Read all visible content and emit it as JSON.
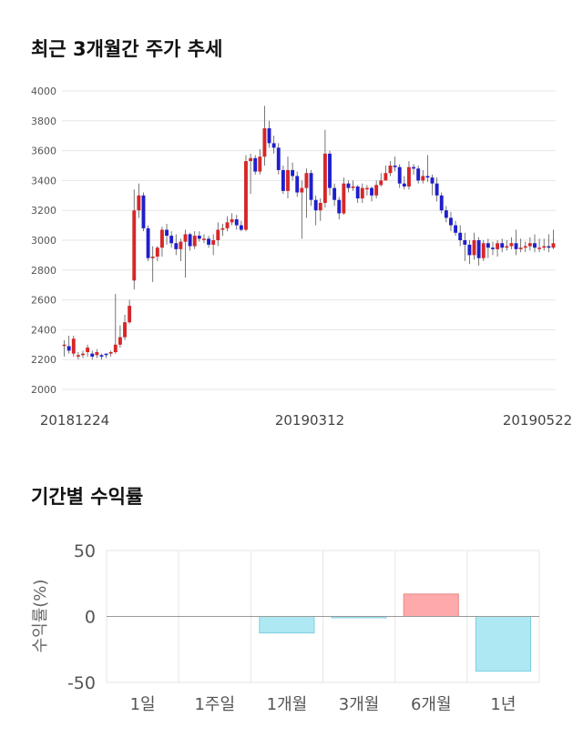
{
  "sections": {
    "price_title": "최근 3개월간 주가 추세",
    "returns_title": "기간별 수익률"
  },
  "colors": {
    "up": "#d62728",
    "down": "#1f1fcc",
    "grid": "#e6e6e6",
    "positive_bar": "#ffaaaa",
    "negative_bar": "#aee8f2"
  },
  "chart_data": [
    {
      "type": "candlestick",
      "title": "최근 3개월간 주가 추세",
      "ylim": [
        2000,
        4000
      ],
      "yticks": [
        2000,
        2200,
        2400,
        2600,
        2800,
        3000,
        3200,
        3400,
        3600,
        3800,
        4000
      ],
      "xticks": [
        "20181224",
        "20190312",
        "20190522"
      ],
      "closes": [
        2300,
        2260,
        2340,
        2230,
        2240,
        2280,
        2220,
        2250,
        2220,
        2230,
        2250,
        2300,
        2350,
        2450,
        2560,
        3200,
        3300,
        3080,
        2880,
        2890,
        2950,
        3070,
        3030,
        2980,
        2940,
        2990,
        3040,
        2960,
        3030,
        3010,
        3010,
        2970,
        3000,
        3070,
        3080,
        3120,
        3140,
        3100,
        3070,
        3530,
        3550,
        3460,
        3560,
        3750,
        3650,
        3620,
        3470,
        3330,
        3470,
        3430,
        3320,
        3350,
        3450,
        3270,
        3200,
        3250,
        3580,
        3350,
        3270,
        3180,
        3380,
        3350,
        3360,
        3280,
        3350,
        3350,
        3300,
        3370,
        3400,
        3450,
        3500,
        3490,
        3380,
        3360,
        3490,
        3480,
        3400,
        3430,
        3420,
        3380,
        3300,
        3200,
        3150,
        3100,
        3050,
        3000,
        2970,
        2900,
        3000,
        2880,
        2980,
        2950,
        2940,
        2980,
        2950,
        2960,
        2980,
        2940,
        2950,
        2960,
        2980,
        2950,
        2950,
        2960,
        2950,
        2980
      ],
      "opens": [
        2300,
        2290,
        2240,
        2220,
        2230,
        2250,
        2240,
        2230,
        2230,
        2240,
        2240,
        2250,
        2300,
        2350,
        2450,
        2730,
        3200,
        3300,
        3080,
        2880,
        2890,
        2950,
        3070,
        3030,
        2980,
        2940,
        2990,
        3040,
        2960,
        3030,
        3010,
        3010,
        2970,
        3000,
        3070,
        3080,
        3120,
        3140,
        3100,
        3070,
        3530,
        3550,
        3460,
        3560,
        3750,
        3650,
        3620,
        3470,
        3330,
        3470,
        3430,
        3320,
        3350,
        3450,
        3270,
        3200,
        3250,
        3580,
        3350,
        3270,
        3180,
        3380,
        3350,
        3360,
        3280,
        3350,
        3350,
        3300,
        3370,
        3400,
        3450,
        3500,
        3490,
        3380,
        3360,
        3490,
        3480,
        3400,
        3430,
        3420,
        3380,
        3300,
        3200,
        3150,
        3100,
        3050,
        3000,
        2970,
        2900,
        3000,
        2880,
        2980,
        2950,
        2940,
        2980,
        2950,
        2960,
        2980,
        2940,
        2950,
        2960,
        2980,
        2950,
        2950,
        2960,
        2950
      ],
      "highs": [
        2330,
        2360,
        2360,
        2250,
        2260,
        2300,
        2260,
        2270,
        2240,
        2240,
        2260,
        2640,
        2430,
        2500,
        2600,
        3340,
        3380,
        3320,
        3100,
        2960,
        2960,
        3090,
        3110,
        3060,
        3040,
        3010,
        3070,
        3050,
        3060,
        3060,
        3040,
        3030,
        3040,
        3120,
        3110,
        3160,
        3180,
        3170,
        3130,
        3570,
        3580,
        3570,
        3610,
        3900,
        3800,
        3700,
        3650,
        3500,
        3560,
        3520,
        3460,
        3400,
        3480,
        3470,
        3300,
        3280,
        3740,
        3600,
        3380,
        3290,
        3420,
        3400,
        3400,
        3370,
        3380,
        3370,
        3360,
        3400,
        3450,
        3500,
        3530,
        3560,
        3510,
        3430,
        3530,
        3510,
        3500,
        3470,
        3570,
        3440,
        3420,
        3320,
        3230,
        3190,
        3130,
        3100,
        3050,
        3000,
        3050,
        3020,
        3000,
        3010,
        2990,
        3000,
        3010,
        3000,
        3020,
        3070,
        3010,
        2990,
        3020,
        3040,
        3010,
        3010,
        3040,
        3070
      ],
      "lows": [
        2220,
        2240,
        2220,
        2200,
        2210,
        2220,
        2200,
        2210,
        2200,
        2210,
        2220,
        2240,
        2280,
        2330,
        2440,
        2670,
        3150,
        3060,
        2860,
        2720,
        2860,
        2890,
        2970,
        2950,
        2900,
        2860,
        2750,
        2930,
        2940,
        2990,
        2980,
        2950,
        2900,
        2960,
        3030,
        3060,
        3100,
        3070,
        3060,
        3060,
        3310,
        3440,
        3440,
        3500,
        3620,
        3580,
        3440,
        3310,
        3280,
        3400,
        3290,
        3010,
        3150,
        3230,
        3100,
        3130,
        3220,
        3300,
        3230,
        3140,
        3170,
        3320,
        3330,
        3250,
        3250,
        3300,
        3260,
        3280,
        3360,
        3400,
        3430,
        3460,
        3350,
        3340,
        3340,
        3440,
        3380,
        3380,
        3390,
        3300,
        3260,
        3180,
        3120,
        3060,
        3030,
        2960,
        2860,
        2840,
        2870,
        2830,
        2860,
        2880,
        2900,
        2890,
        2920,
        2930,
        2940,
        2900,
        2920,
        2920,
        2930,
        2920,
        2920,
        2930,
        2920,
        2940
      ]
    },
    {
      "type": "bar",
      "categories": [
        "1일",
        "1주일",
        "1개월",
        "3개월",
        "6개월",
        "1년"
      ],
      "values": [
        0,
        0,
        -12.5,
        -1.0,
        17.0,
        -41.5
      ],
      "ylabel": "수익률(%)",
      "ylim": [
        -50,
        50
      ],
      "yticks": [
        50,
        0,
        -50
      ]
    }
  ]
}
